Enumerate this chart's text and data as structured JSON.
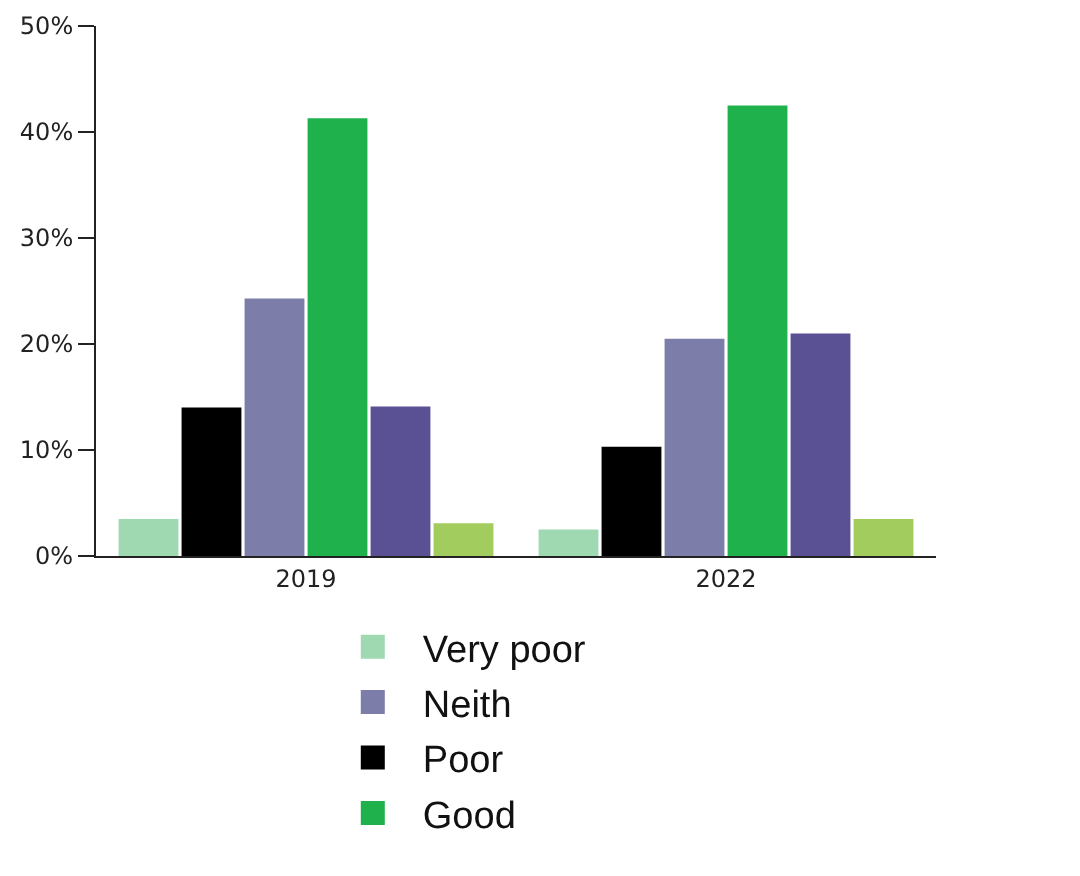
{
  "chart_data": {
    "type": "bar",
    "categories": [
      "2019",
      "2022"
    ],
    "series": [
      {
        "name": "Very poor",
        "color": "#9fd9b1",
        "values": [
          3.5,
          2.5
        ]
      },
      {
        "name": "Poor",
        "color": "#000000",
        "values": [
          14,
          10.3
        ]
      },
      {
        "name": "Neith",
        "color": "#7d7daa",
        "values": [
          24.3,
          20.5
        ]
      },
      {
        "name": "Good",
        "color": "#1fb14c",
        "values": [
          41.3,
          42.5
        ]
      },
      {
        "color": "#5a5195",
        "values": [
          14.1,
          21
        ]
      },
      {
        "color": "#a2cc5e",
        "values": [
          3.1,
          3.5
        ]
      }
    ],
    "ylim": [
      0,
      50
    ],
    "yticks": [
      {
        "value": 0,
        "label": "0%"
      },
      {
        "value": 10,
        "label": "10%"
      },
      {
        "value": 20,
        "label": "20%"
      },
      {
        "value": 30,
        "label": "30%"
      },
      {
        "value": 40,
        "label": "40%"
      },
      {
        "value": 50,
        "label": "50%"
      }
    ],
    "grid": false,
    "legend": "bottom"
  }
}
